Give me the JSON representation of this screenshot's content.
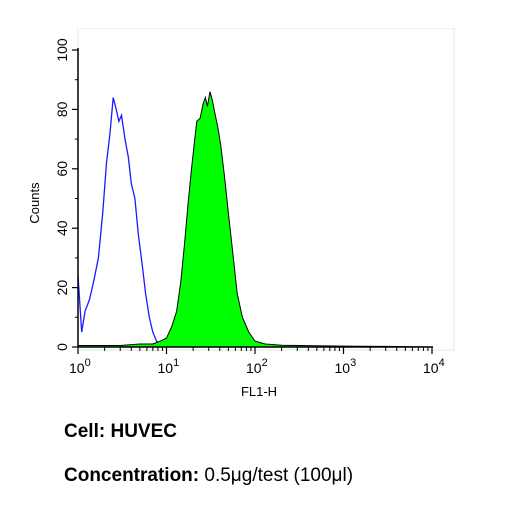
{
  "chart_data": {
    "type": "area",
    "title": "",
    "xlabel": "FL1-H",
    "ylabel": "Counts",
    "x_scale": "log",
    "xlim": [
      1,
      10000
    ],
    "ylim": [
      0,
      100
    ],
    "x_ticks": [
      {
        "value": 1,
        "base": "10",
        "exp": "0"
      },
      {
        "value": 10,
        "base": "10",
        "exp": "1"
      },
      {
        "value": 100,
        "base": "10",
        "exp": "2"
      },
      {
        "value": 1000,
        "base": "10",
        "exp": "3"
      },
      {
        "value": 10000,
        "base": "10",
        "exp": "4"
      }
    ],
    "y_ticks": [
      "0",
      "20",
      "40",
      "60",
      "80",
      "100"
    ],
    "grid": false,
    "legend": "none",
    "series": [
      {
        "style": "outline",
        "color": "#1a1aff",
        "x": [
          1,
          1.1,
          1.2,
          1.35,
          1.5,
          1.7,
          1.9,
          2.1,
          2.3,
          2.5,
          2.7,
          2.9,
          3.1,
          3.4,
          3.7,
          4.0,
          4.4,
          4.8,
          5.3,
          5.8,
          6.4,
          7.0,
          7.7,
          8.5,
          9.5,
          10.5,
          11.5,
          12.5
        ],
        "y": [
          24,
          5,
          12,
          16,
          22,
          30,
          45,
          62,
          72,
          84,
          80,
          76,
          78,
          70,
          64,
          55,
          50,
          38,
          28,
          18,
          10,
          5,
          2,
          1,
          1,
          0.5,
          0.3,
          0
        ]
      },
      {
        "style": "filled",
        "color": "#00ff00",
        "x": [
          1,
          3,
          5,
          7,
          8.5,
          10,
          11.5,
          13,
          14.5,
          16,
          17.5,
          19,
          20.5,
          22,
          24,
          26,
          27.5,
          29,
          31,
          33,
          35,
          38,
          41,
          45,
          50,
          56,
          63,
          72,
          85,
          100,
          130,
          200,
          500,
          1000,
          3000,
          10000
        ],
        "y": [
          0.5,
          0.5,
          1,
          1,
          2,
          3,
          7,
          12,
          22,
          35,
          48,
          59,
          68,
          76,
          77,
          82,
          84,
          81,
          86,
          83,
          79,
          74,
          68,
          58,
          45,
          32,
          18,
          10,
          5,
          2,
          1,
          0.6,
          0.4,
          0.3,
          0.2,
          0
        ]
      }
    ]
  },
  "caption": {
    "cell_label": "Cell:",
    "cell_value": "HUVEC",
    "conc_label": "Concentration:",
    "conc_value": "0.5μg/test (100μl)"
  }
}
